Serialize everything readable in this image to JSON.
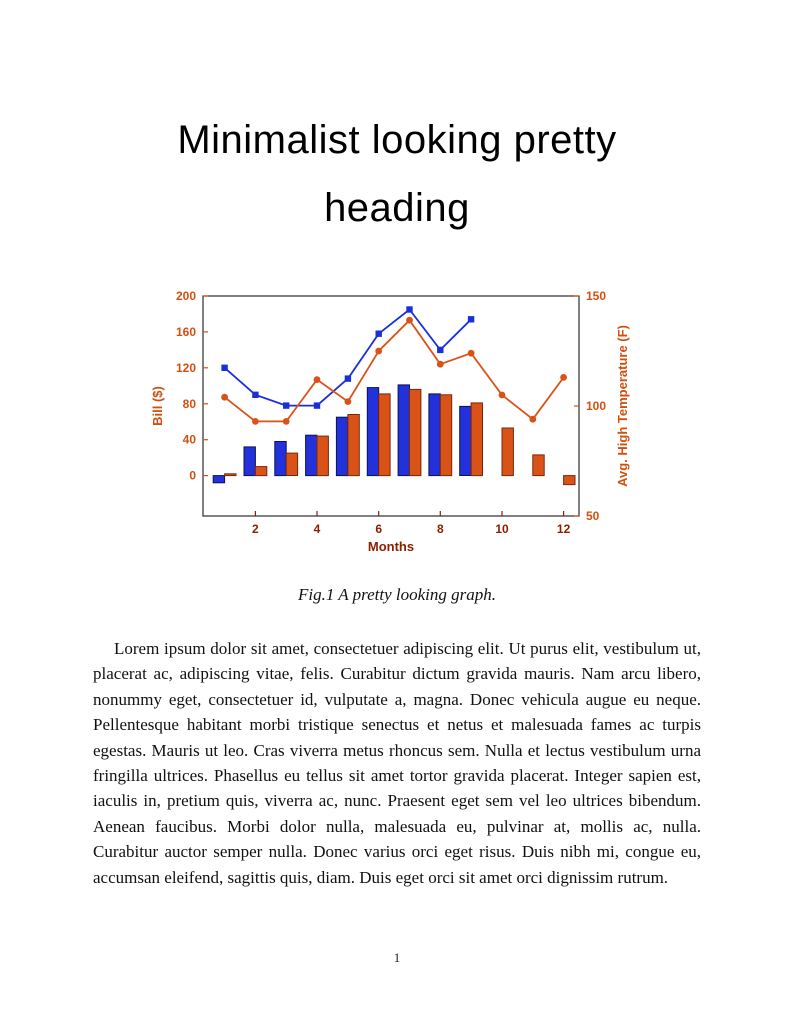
{
  "page": {
    "heading_line1": "Minimalist looking pretty",
    "heading_line2": "heading",
    "figure_caption": "Fig.1 A pretty looking graph.",
    "body_paragraph": "Lorem ipsum dolor sit amet, consectetuer adipiscing elit. Ut purus elit, vestibulum ut, placerat ac, adipiscing vitae, felis. Curabitur dictum gravida mauris. Nam arcu libero, nonummy eget, consectetuer id, vulputate a, magna. Donec vehicula augue eu neque. Pellentesque habitant morbi tristique senectus et netus et malesuada fames ac turpis egestas. Mauris ut leo. Cras viverra metus rhoncus sem. Nulla et lectus vestibulum urna fringilla ultrices. Phasellus eu tellus sit amet tortor gravida placerat. Integer sapien est, iaculis in, pretium quis, viverra ac, nunc. Praesent eget sem vel leo ultrices bibendum. Aenean faucibus. Morbi dolor nulla, malesuada eu, pulvinar at, mollis ac, nulla. Curabitur auctor semper nulla. Donec varius orci eget risus. Duis nibh mi, congue eu, accumsan eleifend, sagittis quis, diam. Duis eget orci sit amet orci dignissim rutrum.",
    "page_number": "1"
  },
  "chart_data": {
    "type": "combo-bar-line-dual-axis",
    "x": [
      1,
      2,
      3,
      4,
      5,
      6,
      7,
      8,
      9,
      10,
      11,
      12
    ],
    "x_ticks": [
      2,
      4,
      6,
      8,
      10,
      12
    ],
    "x_range": [
      0.3,
      12.5
    ],
    "xlabel": "Months",
    "x_axis_color": "#8b2000",
    "box_color": "#2b2b2b",
    "grid": false,
    "legend": false,
    "title": "",
    "left_axis": {
      "label": "Bill ($)",
      "ticks": [
        0,
        40,
        80,
        120,
        160,
        200
      ],
      "range": [
        -45,
        200
      ],
      "color": "#d2500f"
    },
    "right_axis": {
      "label": "Avg. High Temperature (F)",
      "ticks": [
        50,
        100,
        150
      ],
      "range": [
        50,
        150
      ],
      "color": "#d2500f"
    },
    "series": [
      {
        "name": "bill-bars-blue",
        "type": "bar",
        "axis": "left",
        "color": "#2231d9",
        "edge": "#0b1354",
        "values": [
          -8,
          32,
          38,
          45,
          65,
          98,
          101,
          91,
          77,
          0,
          0,
          0
        ]
      },
      {
        "name": "bill-bars-orange",
        "type": "bar",
        "axis": "left",
        "color": "#d95319",
        "edge": "#7a2708",
        "values": [
          2,
          10,
          25,
          44,
          68,
          91,
          96,
          90,
          81,
          53,
          23,
          -10
        ]
      },
      {
        "name": "bill-line-blue",
        "type": "line",
        "axis": "left",
        "color": "#1b2fd6",
        "marker": "square",
        "values": [
          120,
          90,
          78,
          78,
          108,
          158,
          185,
          140,
          174,
          null,
          null,
          null
        ]
      },
      {
        "name": "temperature-line-orange",
        "type": "line",
        "axis": "right",
        "color": "#d95319",
        "marker": "circle",
        "values": [
          104,
          93,
          93,
          112,
          102,
          125,
          139,
          119,
          124,
          105,
          94,
          113
        ]
      }
    ]
  }
}
